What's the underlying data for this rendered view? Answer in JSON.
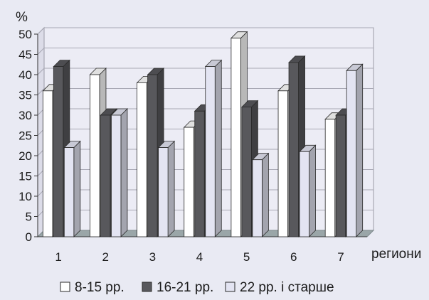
{
  "chart_data": {
    "type": "bar",
    "style": "3d-clustered",
    "ylabel": "%",
    "xlabel": "региони",
    "ylim": [
      0,
      50
    ],
    "yticks": [
      0,
      5,
      10,
      15,
      20,
      25,
      30,
      35,
      40,
      45,
      50
    ],
    "categories": [
      "1",
      "2",
      "3",
      "4",
      "5",
      "6",
      "7"
    ],
    "series": [
      {
        "name": "8-15 рр.",
        "color": "#ffffff",
        "values": [
          36,
          40,
          38,
          27,
          49,
          36,
          29
        ]
      },
      {
        "name": "16-21 рр.",
        "color": "#58585c",
        "values": [
          42,
          30,
          40,
          31,
          32,
          43,
          30
        ]
      },
      {
        "name": "22 рр. і старше",
        "color": "#e3e4f2",
        "values": [
          22,
          30,
          22,
          42,
          19,
          21,
          41
        ]
      }
    ],
    "grid": true,
    "legend_position": "bottom"
  }
}
